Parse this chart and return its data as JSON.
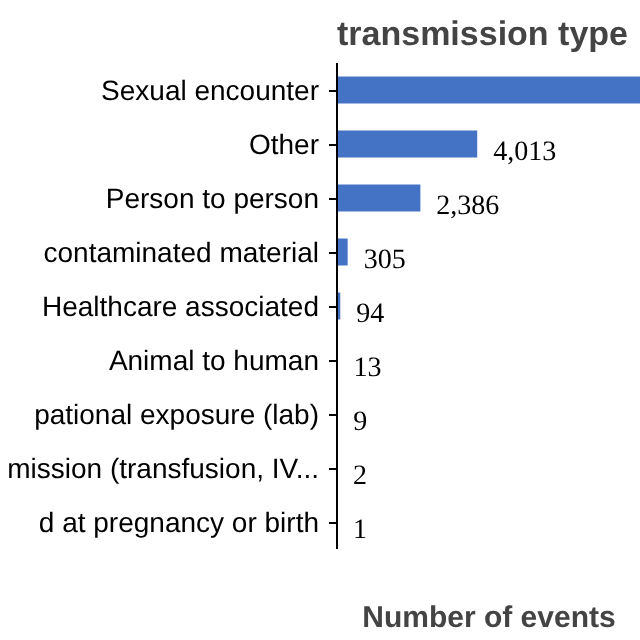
{
  "chart_data": {
    "type": "bar",
    "orientation": "horizontal",
    "title": "transmission type",
    "xlabel": "Number of events",
    "categories": [
      "Sexual encounter",
      "Other",
      "Person to person",
      "contaminated material",
      "Healthcare associated",
      "Animal to human",
      "pational exposure (lab)",
      "mission (transfusion, IV...",
      "d at pregnancy or birth"
    ],
    "values": [
      8700,
      4013,
      2386,
      305,
      94,
      13,
      9,
      2,
      1
    ],
    "value_labels": [
      null,
      "4,013",
      "2,386",
      "305",
      "94",
      "13",
      "9",
      "2",
      "1"
    ],
    "color": "#4472c4",
    "xlim": [
      0,
      8700
    ],
    "tick_labels": "y",
    "grid": false
  }
}
